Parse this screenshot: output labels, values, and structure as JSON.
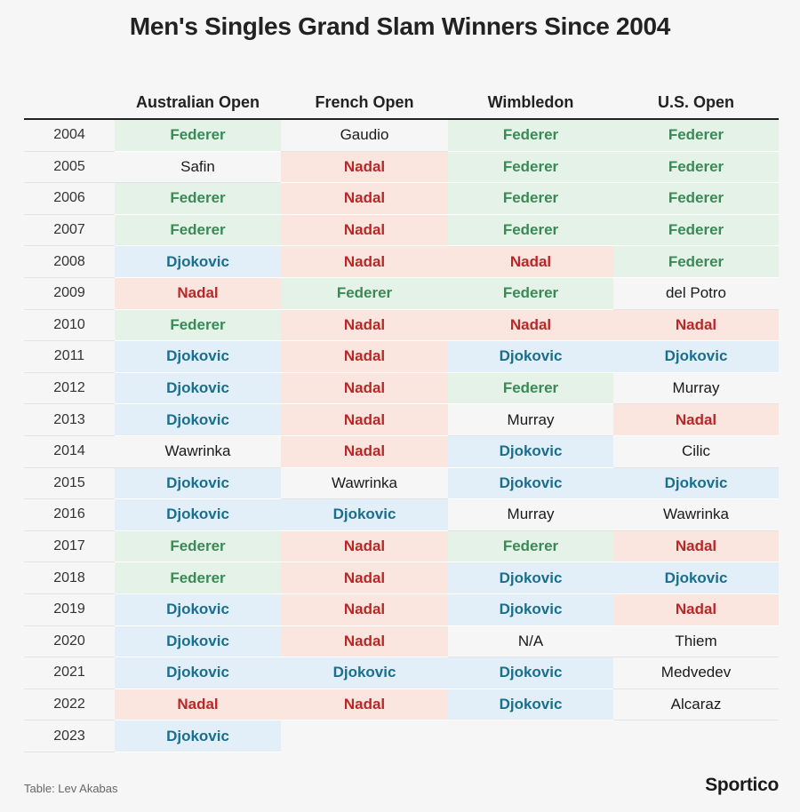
{
  "colors": {
    "federer_bg": "#e4f2e8",
    "federer_text": "#3a8a55",
    "nadal_bg": "#fbe5df",
    "nadal_text": "#b82828",
    "djokovic_bg": "#e3eff8",
    "djokovic_text": "#1a6e8e"
  },
  "chart_data": {
    "type": "table",
    "title": "Men's Singles Grand Slam Winners Since 2004",
    "columns": [
      "Australian Open",
      "French Open",
      "Wimbledon",
      "U.S. Open"
    ],
    "rows": [
      {
        "year": "2004",
        "winners": [
          "Federer",
          "Gaudio",
          "Federer",
          "Federer"
        ]
      },
      {
        "year": "2005",
        "winners": [
          "Safin",
          "Nadal",
          "Federer",
          "Federer"
        ]
      },
      {
        "year": "2006",
        "winners": [
          "Federer",
          "Nadal",
          "Federer",
          "Federer"
        ]
      },
      {
        "year": "2007",
        "winners": [
          "Federer",
          "Nadal",
          "Federer",
          "Federer"
        ]
      },
      {
        "year": "2008",
        "winners": [
          "Djokovic",
          "Nadal",
          "Nadal",
          "Federer"
        ]
      },
      {
        "year": "2009",
        "winners": [
          "Nadal",
          "Federer",
          "Federer",
          "del Potro"
        ]
      },
      {
        "year": "2010",
        "winners": [
          "Federer",
          "Nadal",
          "Nadal",
          "Nadal"
        ]
      },
      {
        "year": "2011",
        "winners": [
          "Djokovic",
          "Nadal",
          "Djokovic",
          "Djokovic"
        ]
      },
      {
        "year": "2012",
        "winners": [
          "Djokovic",
          "Nadal",
          "Federer",
          "Murray"
        ]
      },
      {
        "year": "2013",
        "winners": [
          "Djokovic",
          "Nadal",
          "Murray",
          "Nadal"
        ]
      },
      {
        "year": "2014",
        "winners": [
          "Wawrinka",
          "Nadal",
          "Djokovic",
          "Cilic"
        ]
      },
      {
        "year": "2015",
        "winners": [
          "Djokovic",
          "Wawrinka",
          "Djokovic",
          "Djokovic"
        ]
      },
      {
        "year": "2016",
        "winners": [
          "Djokovic",
          "Djokovic",
          "Murray",
          "Wawrinka"
        ]
      },
      {
        "year": "2017",
        "winners": [
          "Federer",
          "Nadal",
          "Federer",
          "Nadal"
        ]
      },
      {
        "year": "2018",
        "winners": [
          "Federer",
          "Nadal",
          "Djokovic",
          "Djokovic"
        ]
      },
      {
        "year": "2019",
        "winners": [
          "Djokovic",
          "Nadal",
          "Djokovic",
          "Nadal"
        ]
      },
      {
        "year": "2020",
        "winners": [
          "Djokovic",
          "Nadal",
          "N/A",
          "Thiem"
        ]
      },
      {
        "year": "2021",
        "winners": [
          "Djokovic",
          "Djokovic",
          "Djokovic",
          "Medvedev"
        ]
      },
      {
        "year": "2022",
        "winners": [
          "Nadal",
          "Nadal",
          "Djokovic",
          "Alcaraz"
        ]
      },
      {
        "year": "2023",
        "winners": [
          "Djokovic",
          "",
          "",
          ""
        ]
      }
    ]
  },
  "footer": {
    "source": "Table: Lev Akabas",
    "brand": "Sportico"
  }
}
